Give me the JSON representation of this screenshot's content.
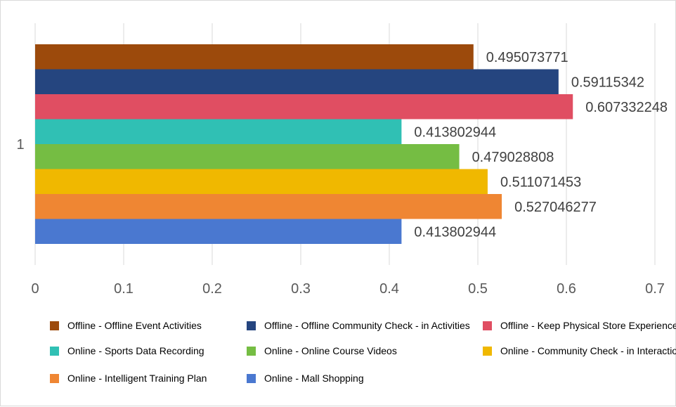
{
  "chart_data": {
    "type": "bar",
    "orientation": "horizontal",
    "categories": [
      "1"
    ],
    "x_ticks": [
      "0",
      "0.1",
      "0.2",
      "0.3",
      "0.4",
      "0.5",
      "0.6",
      "0.7"
    ],
    "xlim": [
      0,
      0.7
    ],
    "grid": true,
    "legend_position": "bottom",
    "series": [
      {
        "name": "Offline - Offline Event Activities",
        "values": [
          0.495073771
        ],
        "label": "0.495073771",
        "color": "#9C4A0C"
      },
      {
        "name": "Offline - Offline Community Check - in Activities",
        "values": [
          0.59115342
        ],
        "label": "0.59115342",
        "color": "#25457F"
      },
      {
        "name": "Offline - Keep Physical Store Experience",
        "values": [
          0.607332248
        ],
        "label": "0.607332248",
        "color": "#E04E62"
      },
      {
        "name": "Online - Sports Data Recording",
        "values": [
          0.413802944
        ],
        "label": "0.413802944",
        "color": "#30C0B4"
      },
      {
        "name": "Online - Online Course Videos",
        "values": [
          0.479028808
        ],
        "label": "0.479028808",
        "color": "#75BD43"
      },
      {
        "name": "Online - Community Check - in Interaction",
        "values": [
          0.511071453
        ],
        "label": "0.511071453",
        "color": "#F0B800"
      },
      {
        "name": "Online - Intelligent Training Plan",
        "values": [
          0.527046277
        ],
        "label": "0.527046277",
        "color": "#EF8633"
      },
      {
        "name": "Online - Mall Shopping",
        "values": [
          0.413802944
        ],
        "label": "0.413802944",
        "color": "#4A78D0"
      }
    ]
  }
}
